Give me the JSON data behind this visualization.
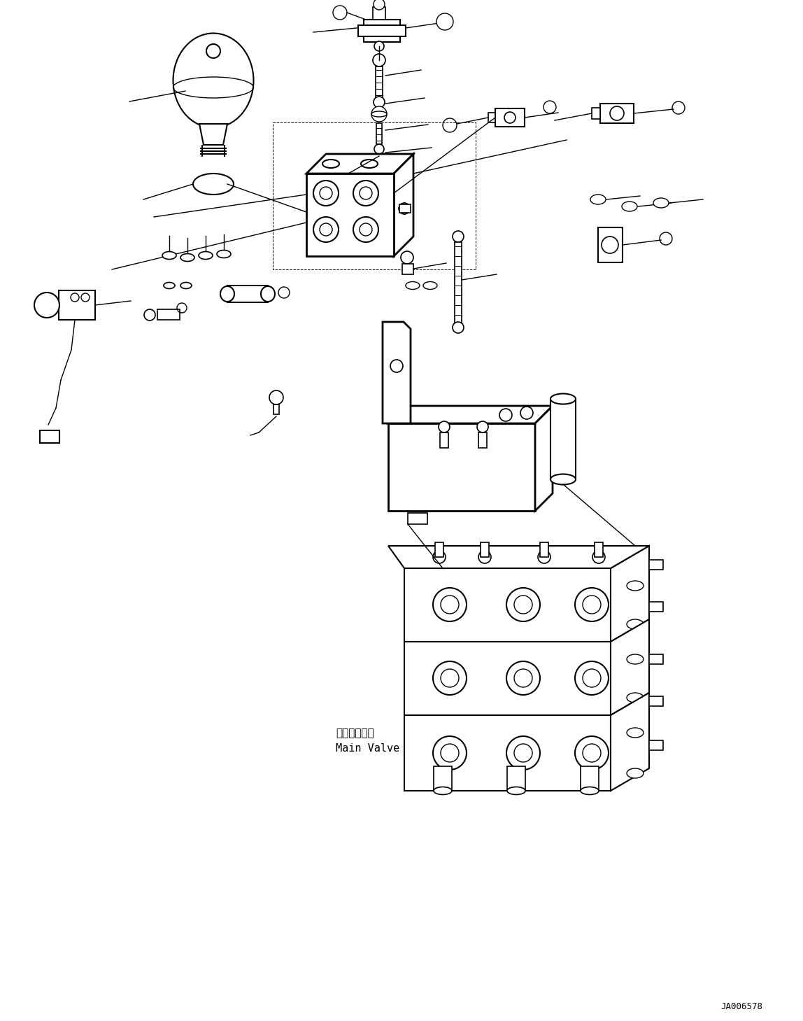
{
  "bg_color": "#ffffff",
  "line_color": "#000000",
  "figure_width": 11.48,
  "figure_height": 14.59,
  "dpi": 100,
  "watermark": "JA006578",
  "label_main_valve_jp": "メインバルブ",
  "label_main_valve_en": "Main Valve"
}
